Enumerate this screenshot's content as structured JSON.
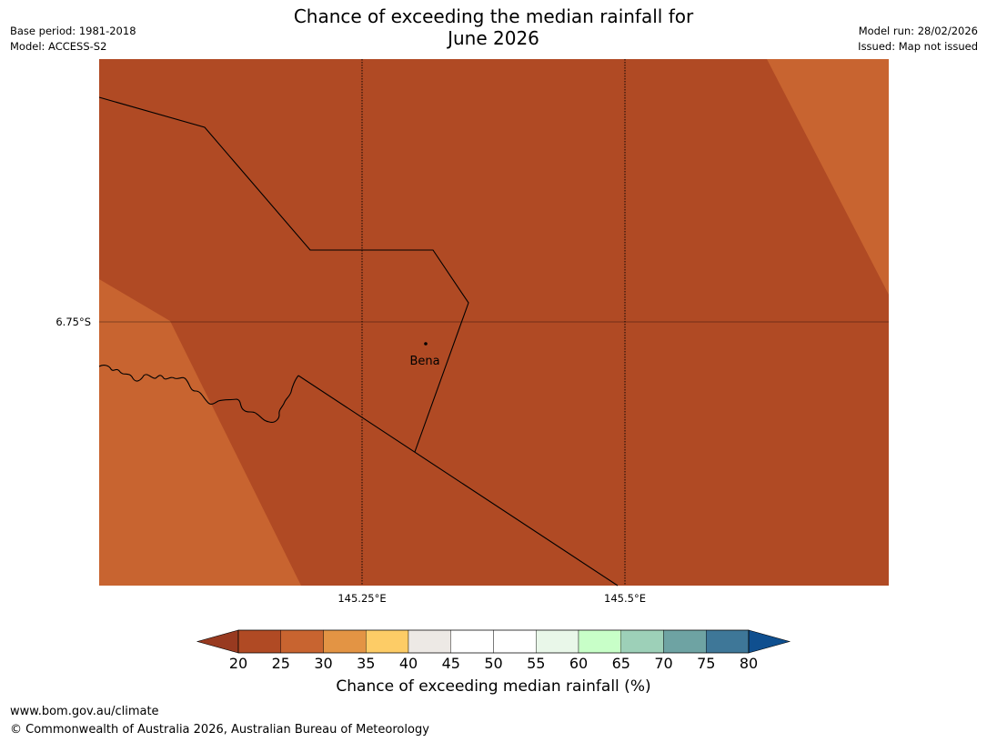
{
  "title": {
    "line1": "Chance of exceeding the median rainfall for",
    "line2": "June 2026"
  },
  "meta_left": {
    "base_period": "Base period: 1981-2018",
    "model": "Model: ACCESS-S2"
  },
  "meta_right": {
    "model_run": "Model run: 28/02/2026",
    "issued": "Issued: Map not issued"
  },
  "map": {
    "place_label": "Bena",
    "lat_tick": "6.75°S",
    "lon_ticks": [
      "145.25°E",
      "145.5°E"
    ],
    "region_fills": [
      "#b04a24",
      "#c86430"
    ],
    "border_color": "#000000"
  },
  "colorbar": {
    "title": "Chance of exceeding median rainfall (%)",
    "tick_labels": [
      "20",
      "25",
      "30",
      "35",
      "40",
      "45",
      "50",
      "55",
      "60",
      "65",
      "70",
      "75",
      "80"
    ],
    "under_color": "#983a20",
    "over_color": "#0f4f8f",
    "colors": [
      "#b04a24",
      "#c86430",
      "#e39444",
      "#fdcc66",
      "#ede9e5",
      "#ffffff",
      "#ffffff",
      "#e9f7e9",
      "#c8ffc8",
      "#9dd0b8",
      "#6ea3a3",
      "#3e7798"
    ]
  },
  "footer": {
    "url": "www.bom.gov.au/climate",
    "copyright": "© Commonwealth of Australia 2026, Australian Bureau of Meteorology"
  }
}
